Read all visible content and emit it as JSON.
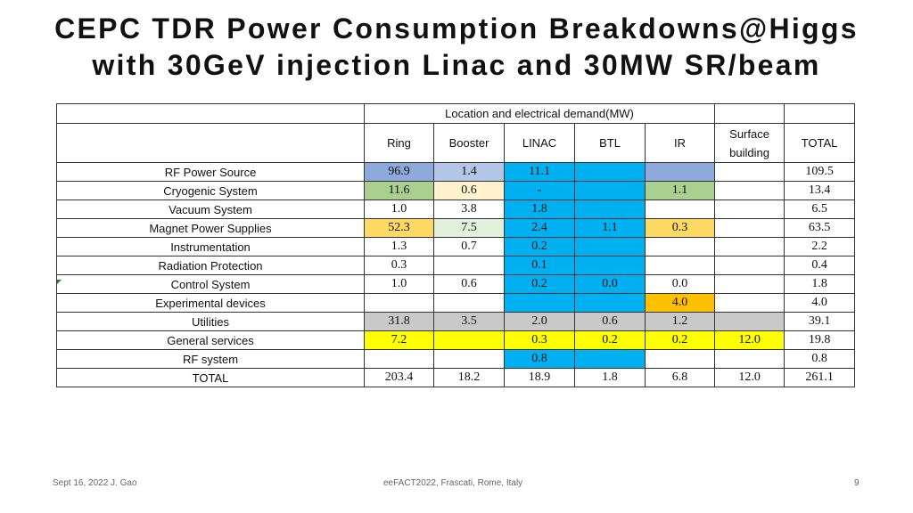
{
  "slide": {
    "title_line1": "CEPC TDR Power Consumption Breakdowns@Higgs",
    "title_line2": "with 30GeV injection Linac and 30MW SR/beam"
  },
  "table": {
    "group_header": "Location and electrical demand(MW)",
    "columns": {
      "ring": "Ring",
      "booster": "Booster",
      "linac": "LINAC",
      "btl": "BTL",
      "ir": "IR",
      "surface_line1": "Surface",
      "surface_line2": "building",
      "total": "TOTAL"
    },
    "rows": [
      {
        "label": "RF Power Source",
        "ring": "96.9",
        "booster": "1.4",
        "linac": "11.1",
        "btl": "",
        "ir": "",
        "surface": "",
        "total": "109.5"
      },
      {
        "label": "Cryogenic System",
        "ring": "11.6",
        "booster": "0.6",
        "linac": "-",
        "btl": "",
        "ir": "1.1",
        "surface": "",
        "total": "13.4"
      },
      {
        "label": "Vacuum System",
        "ring": "1.0",
        "booster": "3.8",
        "linac": "1.8",
        "btl": "",
        "ir": "",
        "surface": "",
        "total": "6.5"
      },
      {
        "label": "Magnet Power Supplies",
        "ring": "52.3",
        "booster": "7.5",
        "linac": "2.4",
        "btl": "1.1",
        "ir": "0.3",
        "surface": "",
        "total": "63.5"
      },
      {
        "label": "Instrumentation",
        "ring": "1.3",
        "booster": "0.7",
        "linac": "0.2",
        "btl": "",
        "ir": "",
        "surface": "",
        "total": "2.2"
      },
      {
        "label": "Radiation Protection",
        "ring": "0.3",
        "booster": "",
        "linac": "0.1",
        "btl": "",
        "ir": "",
        "surface": "",
        "total": "0.4"
      },
      {
        "label": "Control System",
        "ring": "1.0",
        "booster": "0.6",
        "linac": "0.2",
        "btl": "0.0",
        "ir": "0.0",
        "surface": "",
        "total": "1.8"
      },
      {
        "label": "Experimental devices",
        "ring": "",
        "booster": "",
        "linac": "",
        "btl": "",
        "ir": "4.0",
        "surface": "",
        "total": "4.0"
      },
      {
        "label": "Utilities",
        "ring": "31.8",
        "booster": "3.5",
        "linac": "2.0",
        "btl": "0.6",
        "ir": "1.2",
        "surface": "",
        "total": "39.1"
      },
      {
        "label": "General services",
        "ring": "7.2",
        "booster": "",
        "linac": "0.3",
        "btl": "0.2",
        "ir": "0.2",
        "surface": "12.0",
        "total": "19.8"
      },
      {
        "label": "RF system",
        "ring": "",
        "booster": "",
        "linac": "0.8",
        "btl": "",
        "ir": "",
        "surface": "",
        "total": "0.8"
      },
      {
        "label": "TOTAL",
        "ring": "203.4",
        "booster": "18.2",
        "linac": "18.9",
        "btl": "1.8",
        "ir": "6.8",
        "surface": "12.0",
        "total": "261.1"
      }
    ]
  },
  "footer": {
    "date_author": "Sept 16, 2022 J. Gao",
    "event": "eeFACT2022, Frascati, Rome, Italy",
    "page": "9"
  },
  "colors": {
    "blue": "#00b0f0",
    "periwinkle": "#8ea9db",
    "light_periwinkle": "#b4c6e7",
    "green": "#a9d08e",
    "light_green": "#e2efda",
    "cream": "#fff2cc",
    "gold": "#ffd966",
    "orange": "#ffc000",
    "yellow": "#ffff00",
    "gray": "#c9c9c9"
  }
}
